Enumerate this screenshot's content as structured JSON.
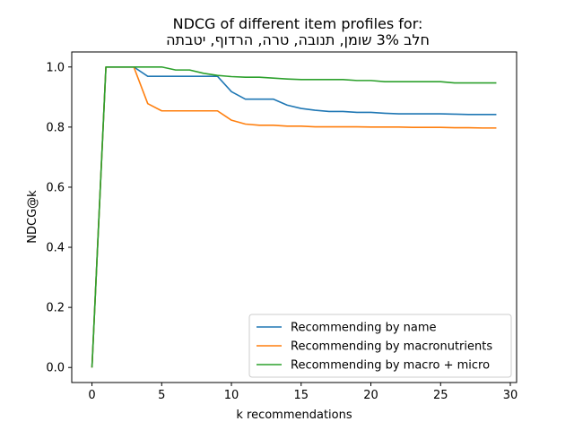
{
  "chart_data": {
    "type": "line",
    "title_line1": "NDCG of different item profiles for:",
    "title_line2": "חלב 3% שומן, תנובה, טרה, הרדוף, יטבתה",
    "xlabel": "k recommendations",
    "ylabel": "NDCG@k",
    "xlim": [
      -1.45,
      30.45
    ],
    "ylim": [
      -0.05,
      1.05
    ],
    "x_ticks": [
      0,
      5,
      10,
      15,
      20,
      25,
      30
    ],
    "y_ticks": [
      0.0,
      0.2,
      0.4,
      0.6,
      0.8,
      1.0
    ],
    "x_tick_labels": [
      "0",
      "5",
      "10",
      "15",
      "20",
      "25",
      "30"
    ],
    "y_tick_labels": [
      "0.0",
      "0.2",
      "0.4",
      "0.6",
      "0.8",
      "1.0"
    ],
    "grid": false,
    "legend_position": "lower-right",
    "x": [
      0,
      1,
      2,
      3,
      4,
      5,
      6,
      7,
      8,
      9,
      10,
      11,
      12,
      13,
      14,
      15,
      16,
      17,
      18,
      19,
      20,
      21,
      22,
      23,
      24,
      25,
      26,
      27,
      28,
      29
    ],
    "series": [
      {
        "name": "Recommending by name",
        "color": "#1f77b4",
        "values": [
          0.0,
          1.0,
          1.0,
          1.0,
          0.969,
          0.969,
          0.969,
          0.969,
          0.969,
          0.969,
          0.918,
          0.893,
          0.893,
          0.893,
          0.873,
          0.862,
          0.856,
          0.852,
          0.852,
          0.849,
          0.849,
          0.846,
          0.844,
          0.844,
          0.844,
          0.844,
          0.843,
          0.842,
          0.842,
          0.842
        ]
      },
      {
        "name": "Recommending by macronutrients",
        "color": "#ff7f0e",
        "values": [
          0.0,
          1.0,
          1.0,
          1.0,
          0.878,
          0.854,
          0.854,
          0.854,
          0.854,
          0.854,
          0.823,
          0.81,
          0.806,
          0.806,
          0.803,
          0.803,
          0.801,
          0.801,
          0.801,
          0.801,
          0.8,
          0.8,
          0.8,
          0.799,
          0.799,
          0.799,
          0.798,
          0.798,
          0.797,
          0.797
        ]
      },
      {
        "name": "Recommending by macro + micro",
        "color": "#2ca02c",
        "values": [
          0.0,
          1.0,
          1.0,
          1.0,
          1.0,
          1.0,
          0.99,
          0.99,
          0.979,
          0.972,
          0.968,
          0.966,
          0.966,
          0.963,
          0.96,
          0.958,
          0.958,
          0.958,
          0.958,
          0.955,
          0.955,
          0.951,
          0.951,
          0.951,
          0.951,
          0.951,
          0.947,
          0.947,
          0.947,
          0.947
        ]
      }
    ]
  }
}
